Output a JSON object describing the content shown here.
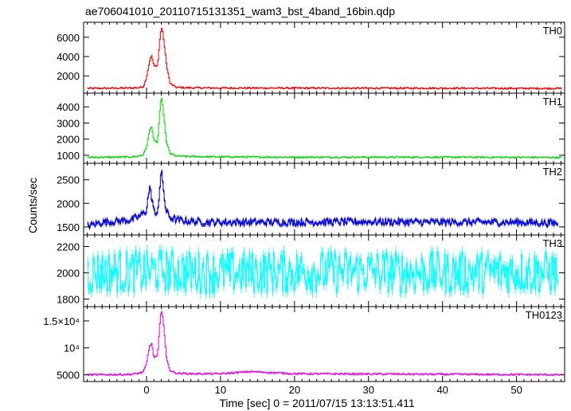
{
  "chart_data": {
    "type": "line",
    "title": "ae706041010_20110715131351_wam3_bst_4band_16bin.qdp",
    "xlabel": "Time [sec] 0 = 2011/07/15 13:13:51.411",
    "ylabel": "Counts/sec",
    "xlim": [
      -8.5,
      56.5
    ],
    "xticks": [
      0,
      10,
      20,
      30,
      40,
      50
    ],
    "panels": [
      {
        "name": "TH0",
        "color": "#ff0000",
        "ylim": [
          450,
          7300
        ],
        "yticks": [
          2000,
          4000,
          6000
        ],
        "ytick_labels": [
          "2000",
          "4000",
          "6000"
        ],
        "x": [
          -8,
          -4,
          -2,
          -1,
          -0.4,
          0,
          0.4,
          0.7,
          1.0,
          1.5,
          1.9,
          2.1,
          2.3,
          2.7,
          3.2,
          4,
          6,
          10,
          20,
          30,
          40,
          50,
          56
        ],
        "y": [
          700,
          720,
          740,
          780,
          900,
          1800,
          3500,
          4100,
          3000,
          3100,
          6500,
          7000,
          5900,
          3200,
          1200,
          800,
          760,
          740,
          730,
          720,
          720,
          700,
          700
        ]
      },
      {
        "name": "TH1",
        "color": "#00dd00",
        "ylim": [
          650,
          4700
        ],
        "yticks": [
          1000,
          2000,
          3000,
          4000
        ],
        "ytick_labels": [
          "1000",
          "2000",
          "3000",
          "4000"
        ],
        "x": [
          -8,
          -4,
          -2,
          -1,
          -0.4,
          0,
          0.4,
          0.7,
          1.0,
          1.5,
          1.9,
          2.1,
          2.3,
          2.7,
          3.2,
          4,
          6,
          10,
          20,
          30,
          40,
          50,
          56
        ],
        "y": [
          870,
          880,
          900,
          950,
          1050,
          1500,
          2500,
          2800,
          1900,
          1800,
          4300,
          4500,
          3600,
          1800,
          1100,
          950,
          920,
          900,
          880,
          880,
          880,
          870,
          860
        ]
      },
      {
        "name": "TH2",
        "color": "#0000dd",
        "ylim": [
          1380,
          2800
        ],
        "yticks": [
          1500,
          2000,
          2500
        ],
        "ytick_labels": [
          "1500",
          "2000",
          "2500"
        ],
        "x": [
          -8,
          -6,
          -4,
          -2,
          -1,
          0,
          0.4,
          0.8,
          1.2,
          1.6,
          2.0,
          2.3,
          2.6,
          3.2,
          4,
          6,
          8,
          10,
          20,
          30,
          40,
          50,
          55.5
        ],
        "y": [
          1520,
          1600,
          1620,
          1650,
          1720,
          1850,
          2350,
          2050,
          1700,
          1950,
          2700,
          2300,
          1850,
          1700,
          1650,
          1620,
          1600,
          1600,
          1600,
          1610,
          1600,
          1600,
          1580
        ]
      },
      {
        "name": "TH3",
        "color": "#00ffff",
        "ylim": [
          1760,
          2270
        ],
        "yticks": [
          1800,
          2000,
          2200
        ],
        "ytick_labels": [
          "1800",
          "2000",
          "2200"
        ],
        "x": [
          -8,
          -4,
          0,
          2,
          4,
          10,
          20,
          30,
          40,
          50,
          55.5
        ],
        "y": [
          2000,
          2010,
          2010,
          2020,
          2010,
          2000,
          2010,
          2010,
          2000,
          2010,
          2000
        ]
      },
      {
        "name": "TH0123",
        "color": "#ee00ee",
        "ylim": [
          4200,
          17200
        ],
        "yticks": [
          5000,
          10000,
          15000
        ],
        "ytick_labels": [
          "5000",
          "10⁴",
          "1.5×10⁴"
        ],
        "x": [
          -8,
          -4,
          -2,
          -1,
          -0.4,
          0,
          0.4,
          0.7,
          1.0,
          1.5,
          1.9,
          2.1,
          2.3,
          2.7,
          3.2,
          4,
          6,
          10,
          12,
          14,
          20,
          30,
          40,
          50,
          56
        ],
        "y": [
          5000,
          5050,
          5100,
          5300,
          5600,
          7000,
          10300,
          10800,
          8200,
          8500,
          16000,
          17000,
          14500,
          8000,
          5800,
          5300,
          5200,
          5200,
          5400,
          5600,
          5200,
          5150,
          5100,
          5050,
          5000
        ]
      }
    ]
  }
}
